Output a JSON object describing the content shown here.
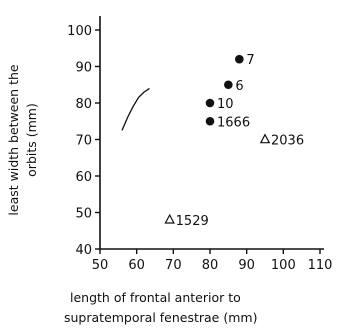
{
  "chart_data": {
    "type": "scatter",
    "title": "",
    "xlabel": [
      "length of frontal anterior to",
      "supratemporal fenestrae (mm)"
    ],
    "ylabel": [
      "least width between the",
      "orbits (mm)"
    ],
    "xlim": [
      50,
      110
    ],
    "ylim": [
      40,
      100
    ],
    "xticks": [
      "50",
      "60",
      "70",
      "80",
      "90",
      "100",
      "110"
    ],
    "yticks": [
      "40",
      "50",
      "60",
      "70",
      "80",
      "90",
      "100"
    ],
    "grid": false,
    "series": [
      {
        "marker": "filled-circle",
        "points": [
          {
            "x": 88,
            "y": 92,
            "label": "7"
          },
          {
            "x": 85,
            "y": 85,
            "label": "6"
          },
          {
            "x": 80,
            "y": 80,
            "label": "10"
          },
          {
            "x": 80,
            "y": 75,
            "label": "1666"
          }
        ]
      },
      {
        "marker": "open-triangle",
        "points": [
          {
            "x": 95,
            "y": 70,
            "label": "2036"
          },
          {
            "x": 69,
            "y": 48,
            "label": "1529"
          }
        ]
      }
    ],
    "curve": {
      "x": [
        56.0,
        57.5,
        59.0,
        60.5,
        62.0,
        63.5
      ],
      "y": [
        72.5,
        76.0,
        79.0,
        81.5,
        83.0,
        84.0
      ]
    }
  }
}
